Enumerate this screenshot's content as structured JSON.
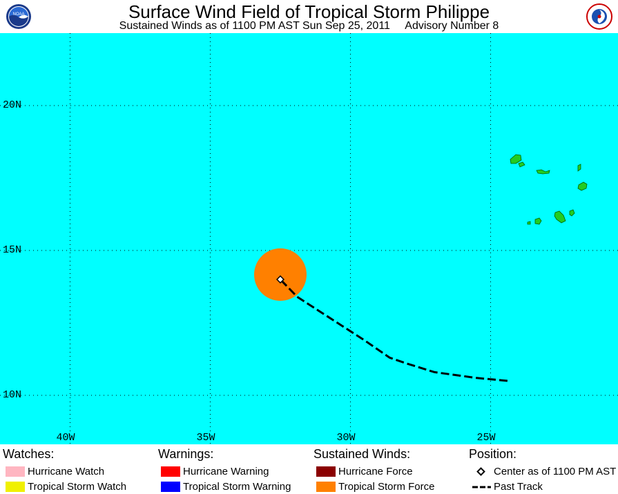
{
  "header": {
    "title": "Surface Wind Field of Tropical Storm Philippe",
    "subtitle": "Sustained Winds as of 1100 PM AST Sun Sep 25, 2011     Advisory Number 8",
    "logo_left": "NOAA",
    "logo_right": "NATIONAL WEATHER SERVICE"
  },
  "map": {
    "ocean_color": "#00ffff",
    "land_color": "#22cc22",
    "wind_field_color": "#ff8000",
    "lat_labels": [
      "20N",
      "15N",
      "10N"
    ],
    "lon_labels": [
      "40W",
      "35W",
      "30W",
      "25W"
    ],
    "storm_center": {
      "lon": -32.5,
      "lat": 14.0
    },
    "past_track": [
      {
        "lon": -24.4,
        "lat": 10.5
      },
      {
        "lon": -25.5,
        "lat": 10.6
      },
      {
        "lon": -27.0,
        "lat": 10.8
      },
      {
        "lon": -28.0,
        "lat": 11.1
      },
      {
        "lon": -28.6,
        "lat": 11.3
      },
      {
        "lon": -29.5,
        "lat": 11.9
      },
      {
        "lon": -30.3,
        "lat": 12.4
      },
      {
        "lon": -31.1,
        "lat": 12.9
      },
      {
        "lon": -31.9,
        "lat": 13.4
      },
      {
        "lon": -32.5,
        "lat": 14.0
      }
    ]
  },
  "legend": {
    "watches": {
      "heading": "Watches:",
      "items": [
        {
          "label": "Hurricane Watch",
          "color": "#ffb6c1"
        },
        {
          "label": "Tropical Storm Watch",
          "color": "#f0f000"
        }
      ]
    },
    "warnings": {
      "heading": "Warnings:",
      "items": [
        {
          "label": "Hurricane Warning",
          "color": "#ff0000"
        },
        {
          "label": "Tropical Storm Warning",
          "color": "#0000ff"
        }
      ]
    },
    "winds": {
      "heading": "Sustained Winds:",
      "items": [
        {
          "label": "Hurricane Force",
          "color": "#8b0000"
        },
        {
          "label": "Tropical Storm Force",
          "color": "#ff8000"
        }
      ]
    },
    "position": {
      "heading": "Position:",
      "center_label": "Center as of 1100 PM AST",
      "track_label": "Past Track"
    }
  }
}
